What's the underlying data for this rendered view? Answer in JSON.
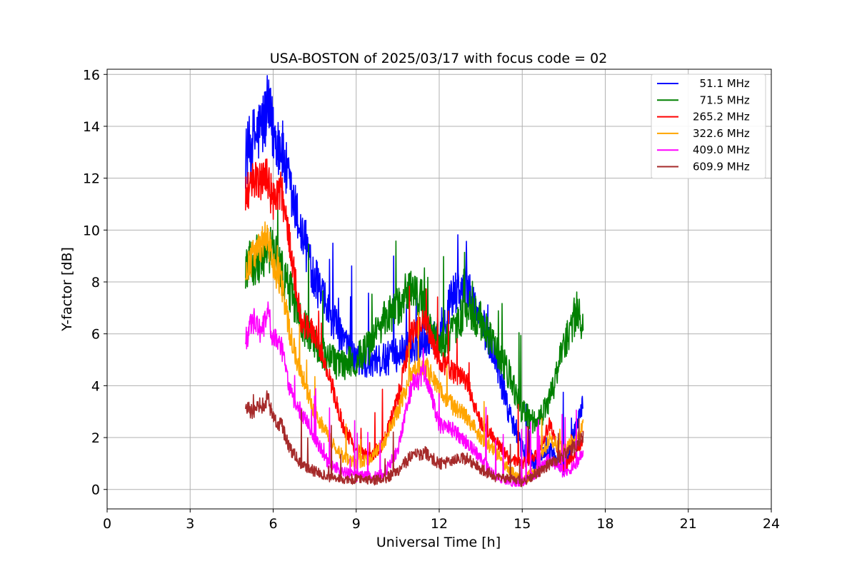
{
  "chart_data": {
    "type": "line",
    "title": "USA-BOSTON of 2025/03/17 with focus code = 02",
    "xlabel": "Universal Time [h]",
    "ylabel": "Y-factor [dB]",
    "xlim": [
      0,
      24
    ],
    "ylim": [
      -0.75,
      16.2
    ],
    "xticks": [
      0,
      3,
      6,
      9,
      12,
      15,
      18,
      21,
      24
    ],
    "yticks": [
      0,
      2,
      4,
      6,
      8,
      10,
      12,
      14,
      16
    ],
    "grid": true,
    "legend_position": "top-right",
    "series": [
      {
        "name": "  51.1 MHz",
        "color": "#0000ff",
        "x": [
          5.0,
          5.3,
          5.6,
          5.8,
          6.0,
          6.3,
          6.6,
          7.0,
          7.5,
          8.0,
          8.5,
          9.0,
          9.5,
          10.0,
          10.5,
          11.0,
          11.5,
          12.0,
          12.5,
          13.0,
          13.5,
          14.0,
          14.5,
          15.0,
          15.5,
          16.0,
          16.5,
          17.0,
          17.2
        ],
        "y": [
          12.8,
          13.5,
          14.0,
          14.6,
          13.8,
          13.2,
          11.5,
          10.0,
          8.2,
          6.8,
          5.8,
          5.0,
          4.8,
          5.0,
          5.2,
          5.5,
          5.8,
          6.0,
          7.5,
          7.8,
          6.5,
          5.2,
          3.0,
          1.5,
          1.0,
          1.5,
          0.8,
          2.5,
          3.5
        ]
      },
      {
        "name": "  71.5 MHz",
        "color": "#008000",
        "x": [
          5.0,
          5.3,
          5.6,
          6.0,
          6.5,
          7.0,
          7.5,
          8.0,
          8.5,
          9.0,
          9.5,
          10.0,
          10.5,
          11.0,
          11.5,
          12.0,
          12.5,
          13.0,
          13.5,
          14.0,
          14.5,
          15.0,
          15.5,
          16.0,
          16.5,
          17.0,
          17.2
        ],
        "y": [
          8.5,
          8.8,
          9.0,
          9.2,
          8.0,
          6.5,
          5.5,
          5.0,
          4.8,
          5.0,
          5.5,
          6.5,
          7.0,
          8.0,
          7.0,
          5.5,
          6.0,
          7.0,
          6.5,
          5.5,
          4.5,
          3.0,
          2.5,
          3.5,
          5.5,
          7.0,
          6.0
        ]
      },
      {
        "name": "265.2 MHz",
        "color": "#ff0000",
        "x": [
          5.0,
          5.3,
          5.6,
          5.8,
          6.0,
          6.3,
          6.6,
          7.0,
          7.5,
          8.0,
          8.5,
          9.0,
          9.5,
          10.0,
          10.5,
          11.0,
          11.5,
          12.0,
          12.5,
          13.0,
          13.5,
          14.0,
          14.5,
          15.0,
          15.5,
          16.0,
          16.5,
          17.0,
          17.2
        ],
        "y": [
          11.3,
          12.0,
          11.8,
          12.0,
          11.0,
          11.5,
          9.5,
          6.5,
          6.0,
          4.5,
          2.5,
          1.5,
          1.2,
          1.8,
          3.5,
          6.0,
          6.5,
          5.0,
          4.5,
          4.2,
          2.5,
          2.0,
          1.2,
          1.0,
          1.3,
          2.5,
          0.8,
          1.5,
          2.0
        ]
      },
      {
        "name": "322.6 MHz",
        "color": "#ffa500",
        "x": [
          5.0,
          5.3,
          5.6,
          5.8,
          6.0,
          6.3,
          6.6,
          7.0,
          7.5,
          8.0,
          8.5,
          9.0,
          9.5,
          10.0,
          10.5,
          11.0,
          11.5,
          12.0,
          12.5,
          13.0,
          13.5,
          14.0,
          14.5,
          15.0,
          15.5,
          16.0,
          16.5,
          17.0,
          17.2
        ],
        "y": [
          8.5,
          9.0,
          9.5,
          9.8,
          8.5,
          8.0,
          6.0,
          4.5,
          3.0,
          2.0,
          1.3,
          1.0,
          1.2,
          1.8,
          3.0,
          4.5,
          4.8,
          3.8,
          3.2,
          2.8,
          2.0,
          1.5,
          0.8,
          0.3,
          0.8,
          2.0,
          1.5,
          2.0,
          2.5
        ]
      },
      {
        "name": "409.0 MHz",
        "color": "#ff00ff",
        "x": [
          5.0,
          5.3,
          5.6,
          5.8,
          6.0,
          6.3,
          6.6,
          7.0,
          7.5,
          8.0,
          8.5,
          9.0,
          9.5,
          10.0,
          10.5,
          11.0,
          11.5,
          12.0,
          12.5,
          13.0,
          13.5,
          14.0,
          14.5,
          15.0,
          15.5,
          16.0,
          16.5,
          17.0,
          17.2
        ],
        "y": [
          5.8,
          6.5,
          6.0,
          7.0,
          5.8,
          5.5,
          3.8,
          3.0,
          2.0,
          1.0,
          0.7,
          0.5,
          0.5,
          0.6,
          1.5,
          4.0,
          4.5,
          2.5,
          2.3,
          1.8,
          1.2,
          0.5,
          0.3,
          0.3,
          0.6,
          1.2,
          0.6,
          1.0,
          1.5
        ]
      },
      {
        "name": "609.9 MHz",
        "color": "#a52a2a",
        "x": [
          5.0,
          5.3,
          5.6,
          5.8,
          6.0,
          6.3,
          6.6,
          7.0,
          7.5,
          8.0,
          8.5,
          9.0,
          9.5,
          10.0,
          10.5,
          11.0,
          11.5,
          12.0,
          12.5,
          13.0,
          13.5,
          14.0,
          14.5,
          15.0,
          15.5,
          16.0,
          16.5,
          17.0,
          17.2
        ],
        "y": [
          3.2,
          3.0,
          3.3,
          3.5,
          2.7,
          2.5,
          1.6,
          1.0,
          0.7,
          0.5,
          0.4,
          0.4,
          0.35,
          0.4,
          0.7,
          1.3,
          1.4,
          1.0,
          1.1,
          1.2,
          0.8,
          0.5,
          0.4,
          0.3,
          0.6,
          1.0,
          1.3,
          1.7,
          2.0
        ]
      }
    ]
  }
}
